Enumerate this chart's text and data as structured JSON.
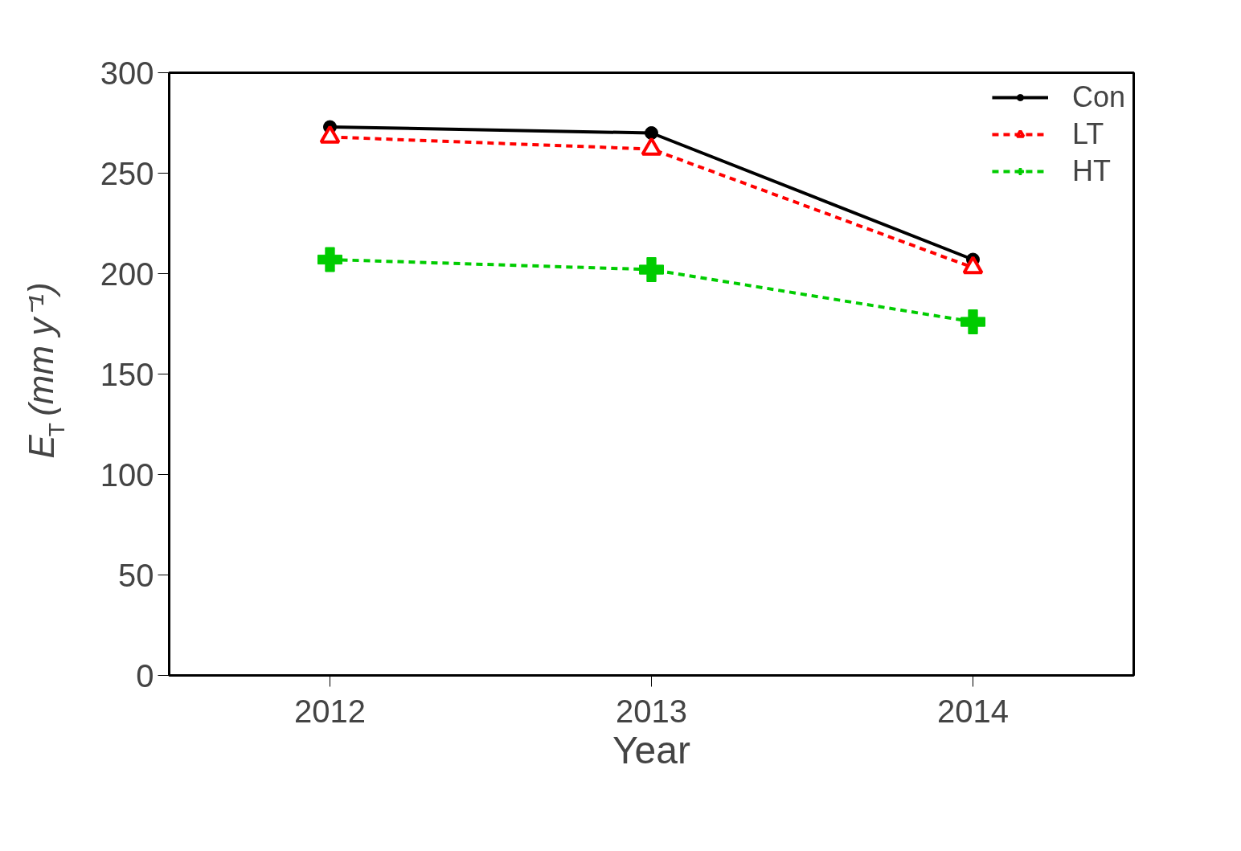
{
  "chart_data": {
    "type": "line",
    "xlabel": "Year",
    "ylabel": "E$_{T}$ (mm y⁻¹)",
    "x": [
      2012,
      2013,
      2014
    ],
    "xlim": [
      2011.5,
      2014.5
    ],
    "xticks": [
      2012,
      2013,
      2014
    ],
    "ylim": [
      0,
      300
    ],
    "yticks": [
      0,
      50,
      100,
      150,
      200,
      250,
      300
    ],
    "grid": false,
    "legend": "top right",
    "series": [
      {
        "name": "Con",
        "color": "#000000",
        "values": [
          273,
          270,
          207
        ],
        "marker": "circle",
        "line_style": "solid"
      },
      {
        "name": "LT",
        "color": "#ff0000",
        "values": [
          268,
          262,
          203
        ],
        "marker": "triangle",
        "line_style": "dashed"
      },
      {
        "name": "HT",
        "color": "#00cc00",
        "values": [
          207,
          202,
          176
        ],
        "marker": "cross",
        "line_style": "dashed"
      }
    ]
  }
}
